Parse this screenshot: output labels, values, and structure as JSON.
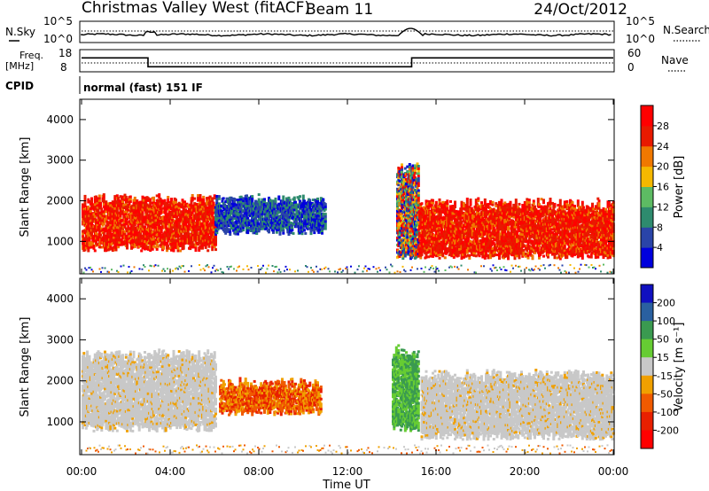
{
  "header": {
    "title": "Christmas Valley West (fitACF)",
    "beam": "Beam 11",
    "date": "24/Oct/2012"
  },
  "noise_panel": {
    "left_label": "N.Sky",
    "right_label": "N.Search",
    "left_ticks": [
      "10^5",
      "10^0"
    ],
    "right_ticks": [
      "10^5",
      "10^0"
    ]
  },
  "freq_panel": {
    "left_label_1": "Freq.",
    "left_label_2": "[MHz]",
    "right_label": "Nave",
    "left_ticks": [
      "18",
      "8"
    ],
    "right_ticks": [
      "60",
      "0"
    ],
    "cpid_label": "CPID",
    "cpid_text": "normal (fast) 151 IF"
  },
  "time_axis": {
    "label": "Time UT",
    "ticks": [
      "00:00",
      "04:00",
      "08:00",
      "12:00",
      "16:00",
      "20:00",
      "00:00"
    ]
  },
  "range_axis": {
    "label": "Slant Range [km]",
    "ticks": [
      "1000",
      "2000",
      "3000",
      "4000"
    ]
  },
  "power_scale": {
    "label": "Power [dB]",
    "ticks": [
      "4",
      "8",
      "12",
      "16",
      "20",
      "24",
      "28"
    ],
    "colors": [
      "#0000dd",
      "#2a44a8",
      "#2e8b6e",
      "#5dbb63",
      "#f5b800",
      "#f07800",
      "#e81a00",
      "#ff0000"
    ]
  },
  "velocity_scale": {
    "label": "Velocity [m s⁻¹]",
    "ticks": [
      "200",
      "100",
      "50",
      "15",
      "-15",
      "-50",
      "-100",
      "-200"
    ],
    "colors": [
      "#1010c0",
      "#2a60a0",
      "#3a9a50",
      "#66cc33",
      "#c8c8c8",
      "#f0a000",
      "#f05a00",
      "#e82000",
      "#ff0000"
    ]
  },
  "chart_data": {
    "type": "heatmap",
    "x_range_hours": [
      0,
      24
    ],
    "y_range_km": [
      200,
      4500
    ],
    "freq_range_mhz": [
      8,
      18
    ],
    "nave_range": [
      0,
      60
    ],
    "freq_steps": [
      {
        "t": 0.0,
        "mhz": 14.3
      },
      {
        "t": 3.0,
        "mhz": 10.3
      },
      {
        "t": 14.9,
        "mhz": 14.3
      },
      {
        "t": 24.0,
        "mhz": 14.3
      }
    ],
    "power_regions": [
      {
        "t0": 0.0,
        "t1": 6.0,
        "r0": 900,
        "r1": 2200,
        "level": "strong"
      },
      {
        "t0": 6.0,
        "t1": 11.0,
        "r0": 1300,
        "r1": 2200,
        "level": "weak"
      },
      {
        "t0": 14.2,
        "t1": 15.2,
        "r0": 700,
        "r1": 3000,
        "level": "mixed"
      },
      {
        "t0": 15.2,
        "t1": 24.0,
        "r0": 700,
        "r1": 2100,
        "level": "strong"
      }
    ],
    "velocity_regions": [
      {
        "t0": 0.0,
        "t1": 6.0,
        "r0": 900,
        "r1": 2800,
        "class": "low"
      },
      {
        "t0": 6.2,
        "t1": 10.8,
        "r0": 1300,
        "r1": 2100,
        "class": "negative"
      },
      {
        "t0": 14.0,
        "t1": 15.2,
        "r0": 900,
        "r1": 2900,
        "class": "positive"
      },
      {
        "t0": 15.3,
        "t1": 24.0,
        "r0": 700,
        "r1": 2300,
        "class": "low"
      }
    ]
  }
}
